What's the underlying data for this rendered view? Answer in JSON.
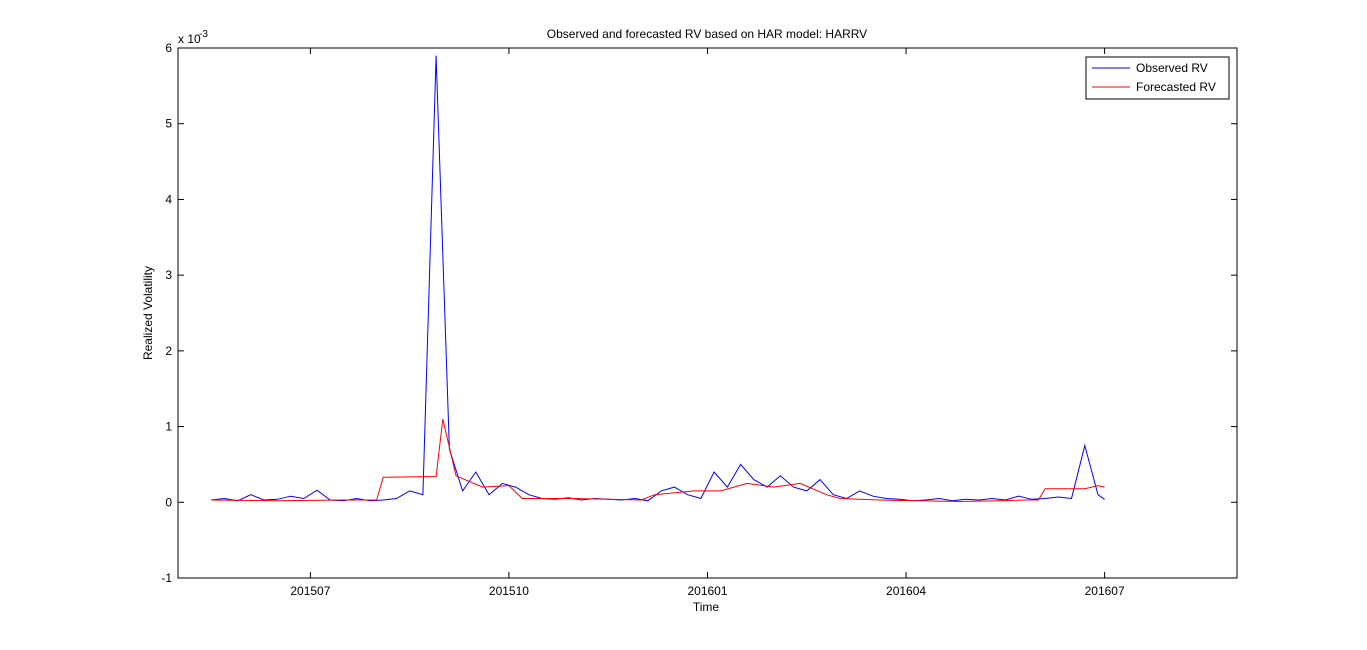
{
  "chart_data": {
    "type": "line",
    "title": "Observed and forecasted RV based on HAR model: HARRV",
    "xlabel": "Time",
    "ylabel": "Realized Volatility",
    "y_multiplier": {
      "base": "x 10",
      "exponent": "-3"
    },
    "xlim": [
      201505,
      201609
    ],
    "ylim": [
      -1,
      6
    ],
    "x_ticks": [
      {
        "value": 201507,
        "label": "201507"
      },
      {
        "value": 201510,
        "label": "201510"
      },
      {
        "value": 201601,
        "label": "201601"
      },
      {
        "value": 201604,
        "label": "201604"
      },
      {
        "value": 201607,
        "label": "201607"
      }
    ],
    "y_ticks": [
      {
        "value": -1,
        "label": "-1"
      },
      {
        "value": 0,
        "label": "0"
      },
      {
        "value": 1,
        "label": "1"
      },
      {
        "value": 2,
        "label": "2"
      },
      {
        "value": 3,
        "label": "3"
      },
      {
        "value": 4,
        "label": "4"
      },
      {
        "value": 5,
        "label": "5"
      },
      {
        "value": 6,
        "label": "6"
      }
    ],
    "grid": false,
    "legend_position": "top-right",
    "series": [
      {
        "name": "Observed RV",
        "color": "#0000ff",
        "x": [
          201505.5,
          201505.7,
          201505.9,
          201506.1,
          201506.3,
          201506.5,
          201506.7,
          201506.9,
          201507.1,
          201507.3,
          201507.5,
          201507.7,
          201507.9,
          201508.1,
          201508.3,
          201508.5,
          201508.7,
          201508.9,
          201509.1,
          201509.3,
          201509.5,
          201509.7,
          201509.9,
          201510.1,
          201510.3,
          201510.5,
          201510.7,
          201510.9,
          201511.1,
          201511.3,
          201511.5,
          201511.7,
          201511.9,
          201512.1,
          201512.3,
          201512.5,
          201512.7,
          201512.9,
          201601.1,
          201601.3,
          201601.5,
          201601.7,
          201601.9,
          201602.1,
          201602.3,
          201602.5,
          201602.7,
          201602.9,
          201603.1,
          201603.3,
          201603.5,
          201603.7,
          201603.9,
          201604.1,
          201604.3,
          201604.5,
          201604.7,
          201604.9,
          201605.1,
          201605.3,
          201605.5,
          201605.7,
          201605.9,
          201606.1,
          201606.3,
          201606.5,
          201606.7,
          201606.9,
          201607.0
        ],
        "values": [
          0.03,
          0.05,
          0.02,
          0.1,
          0.03,
          0.04,
          0.08,
          0.05,
          0.16,
          0.03,
          0.02,
          0.05,
          0.02,
          0.03,
          0.05,
          0.15,
          0.1,
          5.9,
          0.7,
          0.15,
          0.4,
          0.1,
          0.25,
          0.2,
          0.1,
          0.05,
          0.04,
          0.06,
          0.03,
          0.05,
          0.04,
          0.03,
          0.05,
          0.02,
          0.15,
          0.2,
          0.1,
          0.05,
          0.4,
          0.2,
          0.5,
          0.3,
          0.2,
          0.35,
          0.2,
          0.15,
          0.3,
          0.1,
          0.05,
          0.15,
          0.08,
          0.05,
          0.04,
          0.02,
          0.03,
          0.05,
          0.02,
          0.04,
          0.03,
          0.05,
          0.03,
          0.08,
          0.04,
          0.05,
          0.07,
          0.05,
          0.75,
          0.1,
          0.04
        ]
      },
      {
        "name": "Forecasted RV",
        "color": "#ff0000",
        "x": [
          201505.5,
          201506.5,
          201507.5,
          201508.0,
          201508.1,
          201508.9,
          201509.0,
          201509.2,
          201509.6,
          201510.0,
          201510.2,
          201511.0,
          201512.0,
          201512.2,
          201512.8,
          201601.2,
          201601.6,
          201602.0,
          201602.4,
          201602.8,
          201603.0,
          201603.6,
          201604.2,
          201604.8,
          201605.4,
          201605.8,
          201606.0,
          201606.1,
          201606.7,
          201606.9,
          201607.0
        ],
        "values": [
          0.03,
          0.02,
          0.03,
          0.03,
          0.33,
          0.34,
          1.1,
          0.35,
          0.2,
          0.22,
          0.05,
          0.05,
          0.03,
          0.1,
          0.15,
          0.15,
          0.25,
          0.2,
          0.25,
          0.1,
          0.05,
          0.03,
          0.02,
          0.01,
          0.02,
          0.03,
          0.03,
          0.18,
          0.18,
          0.22,
          0.2
        ]
      }
    ]
  }
}
